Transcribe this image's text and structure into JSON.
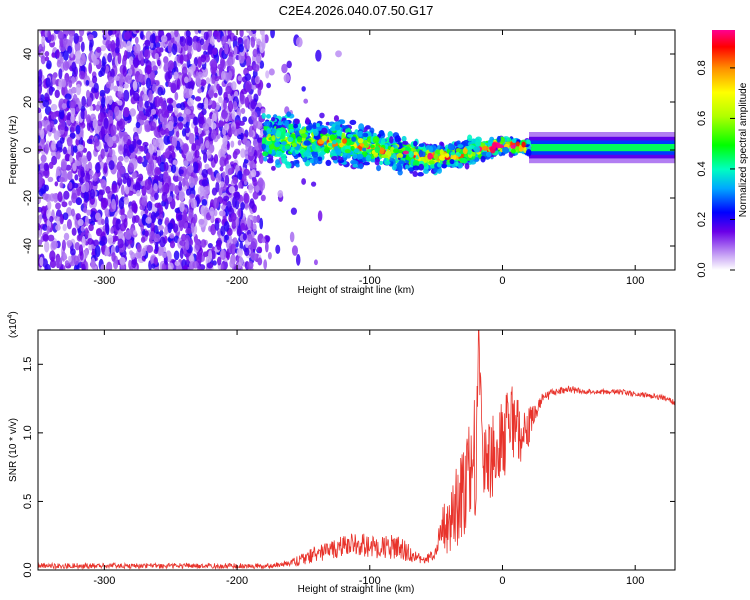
{
  "title": "C2E4.2026.040.07.50.G17",
  "chart_data": [
    {
      "type": "heatmap",
      "xlabel": "Height of straight line (km)",
      "ylabel": "Frequency (Hz)",
      "xlim": [
        -350,
        130
      ],
      "ylim": [
        -50,
        50
      ],
      "xticks": [
        -300,
        -200,
        -100,
        0,
        100
      ],
      "yticks": [
        -40,
        -20,
        0,
        20,
        40
      ],
      "colorbar": {
        "label": "Normalized spectral amplitude",
        "range": [
          0,
          0.95
        ],
        "ticks": [
          "0.0",
          "0.2",
          "0.4",
          "0.6",
          "0.8"
        ],
        "tick_values": [
          0,
          0.2,
          0.4,
          0.6,
          0.8
        ]
      },
      "regions": [
        {
          "name": "noise",
          "x_range": [
            -350,
            -180
          ],
          "freq_range": [
            -50,
            50
          ],
          "amplitude": 0.15
        },
        {
          "name": "transition",
          "x_range": [
            -180,
            20
          ],
          "center_freq_at_x": [
            [
              -180,
              5
            ],
            [
              -120,
              3
            ],
            [
              -90,
              0
            ],
            [
              -60,
              -3
            ],
            [
              -40,
              -3
            ],
            [
              -20,
              0
            ],
            [
              0,
              2
            ],
            [
              20,
              1
            ]
          ],
          "half_width_hz": [
            8,
            2
          ],
          "amplitude": [
            0.25,
            0.9
          ]
        },
        {
          "name": "stable",
          "x_range": [
            20,
            130
          ],
          "center_freq": 1,
          "half_width_hz": 2,
          "amplitude": 0.45
        }
      ]
    },
    {
      "type": "line",
      "xlabel": "Height of straight line (km)",
      "ylabel": "SNR (10 * v/v)",
      "y_scale_label": "(x10",
      "y_scale_exponent": "4",
      "xlim": [
        -350,
        130
      ],
      "ylim": [
        0,
        1.75
      ],
      "xticks": [
        -300,
        -200,
        -100,
        0,
        100
      ],
      "yticks": [
        "0.0",
        "0.5",
        "1.0",
        "1.5"
      ],
      "ytick_values": [
        0,
        0.5,
        1.0,
        1.5
      ],
      "color": "#e8332b",
      "series": [
        {
          "name": "SNR",
          "x": [
            -350,
            -300,
            -250,
            -200,
            -175,
            -160,
            -150,
            -140,
            -120,
            -110,
            -100,
            -90,
            -80,
            -70,
            -60,
            -50,
            -45,
            -40,
            -35,
            -30,
            -25,
            -20,
            -18,
            -15,
            -10,
            -5,
            0,
            5,
            10,
            15,
            20,
            25,
            30,
            40,
            50,
            60,
            70,
            80,
            90,
            100,
            110,
            120,
            130
          ],
          "values": [
            0.03,
            0.03,
            0.03,
            0.03,
            0.03,
            0.05,
            0.08,
            0.12,
            0.17,
            0.2,
            0.17,
            0.16,
            0.18,
            0.12,
            0.07,
            0.12,
            0.3,
            0.3,
            0.45,
            0.55,
            0.75,
            0.9,
            1.7,
            0.8,
            0.8,
            0.85,
            0.95,
            1.05,
            1.1,
            0.95,
            1.05,
            1.15,
            1.25,
            1.3,
            1.32,
            1.3,
            1.3,
            1.3,
            1.3,
            1.28,
            1.27,
            1.26,
            1.22
          ],
          "noise_envelope": [
            0.02,
            0.02,
            0.02,
            0.02,
            0.02,
            0.02,
            0.05,
            0.06,
            0.08,
            0.1,
            0.08,
            0.08,
            0.1,
            0.06,
            0.03,
            0.05,
            0.2,
            0.2,
            0.3,
            0.35,
            0.4,
            0.5,
            0.1,
            0.35,
            0.3,
            0.3,
            0.3,
            0.3,
            0.25,
            0.2,
            0.15,
            0.06,
            0.04,
            0.03,
            0.03,
            0.02,
            0.02,
            0.02,
            0.02,
            0.02,
            0.02,
            0.02,
            0.02
          ]
        }
      ]
    }
  ]
}
